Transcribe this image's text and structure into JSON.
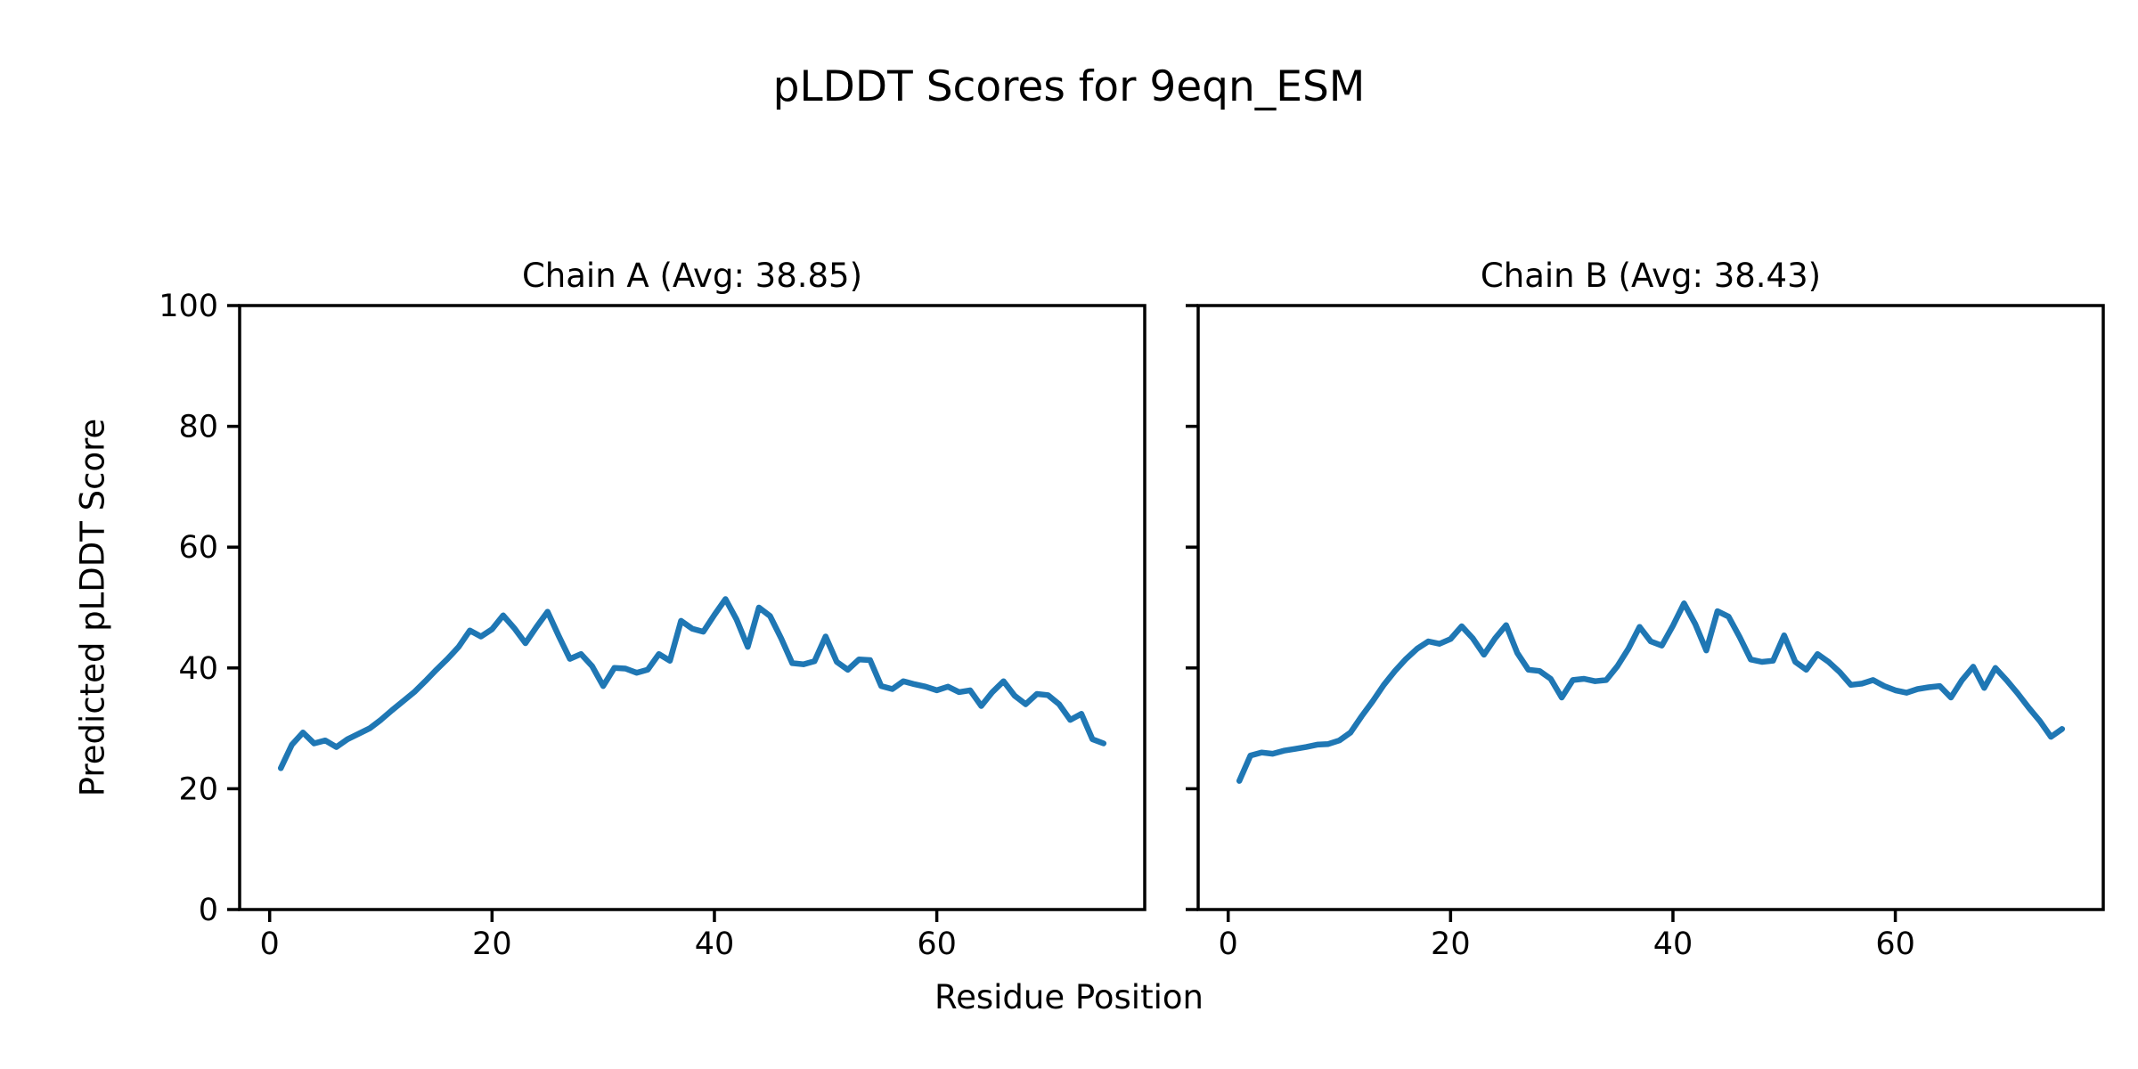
{
  "figure": {
    "title": "pLDDT Scores for 9eqn_ESM",
    "xlabel": "Residue Position",
    "ylabel": "Predicted pLDDT Score",
    "background_color": "#ffffff",
    "text_color": "#000000",
    "line_color": "#1f77b4"
  },
  "chart_data": [
    {
      "type": "line",
      "title": "Chain A (Avg: 38.85)",
      "chain": "A",
      "avg": 38.85,
      "xlim": [
        -2.7,
        78.7
      ],
      "ylim": [
        0,
        100
      ],
      "xticks": [
        0,
        20,
        40,
        60
      ],
      "yticks": [
        0,
        20,
        40,
        60,
        80,
        100
      ],
      "show_ytick_labels": true,
      "grid": false,
      "series": [
        {
          "name": "Chain A pLDDT",
          "color": "#1f77b4",
          "x": [
            1,
            2,
            3,
            4,
            5,
            6,
            7,
            8,
            9,
            10,
            11,
            12,
            13,
            14,
            15,
            16,
            17,
            18,
            19,
            20,
            21,
            22,
            23,
            24,
            25,
            26,
            27,
            28,
            29,
            30,
            31,
            32,
            33,
            34,
            35,
            36,
            37,
            38,
            39,
            40,
            41,
            42,
            43,
            44,
            45,
            46,
            47,
            48,
            49,
            50,
            51,
            52,
            53,
            54,
            55,
            56,
            57,
            58,
            59,
            60,
            61,
            62,
            63,
            64,
            65,
            66,
            67,
            68,
            69,
            70,
            71,
            72,
            73,
            74,
            75
          ],
          "values": [
            23.4,
            27.3,
            29.3,
            27.5,
            28.0,
            26.9,
            28.2,
            29.1,
            30.0,
            31.4,
            33.0,
            34.5,
            36.0,
            37.8,
            39.7,
            41.5,
            43.5,
            46.2,
            45.2,
            46.4,
            48.7,
            46.6,
            44.1,
            46.8,
            49.3,
            45.3,
            41.5,
            42.3,
            40.3,
            37.0,
            40.0,
            39.9,
            39.2,
            39.7,
            42.3,
            41.2,
            47.8,
            46.5,
            46.0,
            48.8,
            51.4,
            48.0,
            43.5,
            50.0,
            48.6,
            44.9,
            40.8,
            40.6,
            41.1,
            45.2,
            41.0,
            39.7,
            41.4,
            41.3,
            37.0,
            36.5,
            37.8,
            37.3,
            36.9,
            36.3,
            36.9,
            36.0,
            36.3,
            33.7,
            36.0,
            37.8,
            35.4,
            34.0,
            35.7,
            35.5,
            34.0,
            31.4,
            32.4,
            28.2,
            27.5
          ]
        }
      ]
    },
    {
      "type": "line",
      "title": "Chain B (Avg: 38.43)",
      "chain": "B",
      "avg": 38.43,
      "xlim": [
        -2.7,
        78.7
      ],
      "ylim": [
        0,
        100
      ],
      "xticks": [
        0,
        20,
        40,
        60
      ],
      "yticks": [
        0,
        20,
        40,
        60,
        80,
        100
      ],
      "show_ytick_labels": false,
      "grid": false,
      "series": [
        {
          "name": "Chain B pLDDT",
          "color": "#1f77b4",
          "x": [
            1,
            2,
            3,
            4,
            5,
            6,
            7,
            8,
            9,
            10,
            11,
            12,
            13,
            14,
            15,
            16,
            17,
            18,
            19,
            20,
            21,
            22,
            23,
            24,
            25,
            26,
            27,
            28,
            29,
            30,
            31,
            32,
            33,
            34,
            35,
            36,
            37,
            38,
            39,
            40,
            41,
            42,
            43,
            44,
            45,
            46,
            47,
            48,
            49,
            50,
            51,
            52,
            53,
            54,
            55,
            56,
            57,
            58,
            59,
            60,
            61,
            62,
            63,
            64,
            65,
            66,
            67,
            68,
            69,
            70,
            71,
            72,
            73,
            74,
            75
          ],
          "values": [
            21.3,
            25.5,
            26.0,
            25.8,
            26.3,
            26.6,
            26.9,
            27.3,
            27.4,
            28.0,
            29.3,
            32.0,
            34.5,
            37.2,
            39.5,
            41.5,
            43.2,
            44.4,
            44.0,
            44.8,
            46.9,
            44.9,
            42.2,
            44.9,
            47.1,
            42.5,
            39.7,
            39.5,
            38.2,
            35.1,
            38.0,
            38.2,
            37.8,
            38.0,
            40.3,
            43.2,
            46.8,
            44.4,
            43.7,
            47.0,
            50.7,
            47.3,
            42.9,
            49.4,
            48.5,
            45.1,
            41.4,
            41.0,
            41.2,
            45.4,
            41.0,
            39.7,
            42.3,
            41.0,
            39.3,
            37.2,
            37.4,
            38.0,
            37.0,
            36.3,
            35.9,
            36.5,
            36.8,
            37.0,
            35.1,
            38.0,
            40.2,
            36.7,
            40.0,
            38.0,
            35.8,
            33.4,
            31.2,
            28.6,
            29.9
          ]
        }
      ]
    }
  ]
}
